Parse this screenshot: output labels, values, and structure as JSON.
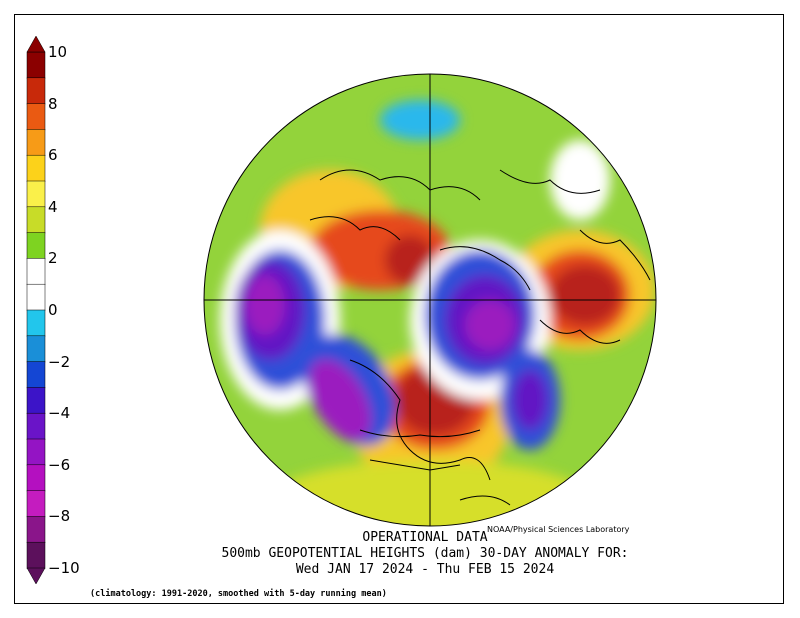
{
  "colorbar": {
    "labels": [
      "10",
      "8",
      "6",
      "4",
      "2",
      "0",
      "−2",
      "−4",
      "−6",
      "−8",
      "−10"
    ],
    "colors": [
      "#8b0000",
      "#c8290a",
      "#ea5a12",
      "#f79b17",
      "#fcd21a",
      "#faf04a",
      "#c8dc28",
      "#7ed321",
      "#ffffff",
      "#ffffff",
      "#22c6ec",
      "#1a8fd8",
      "#1446d4",
      "#3c14c8",
      "#6a14c8",
      "#9414c4",
      "#b410c0",
      "#c41cbf",
      "#8a158a",
      "#5c105c"
    ]
  },
  "map": {
    "credit": "NOAA/Physical Sciences Laboratory",
    "colors": {
      "ocean_base": "#93d33b",
      "strong_pos": "#b8221a",
      "pos": "#e6491b",
      "mod_pos": "#f2821a",
      "weak_pos": "#f8c62a",
      "mild_pos": "#d6df2c",
      "neutral": "#ffffff",
      "weak_neg": "#2bb8ec",
      "neg": "#2f4fd8",
      "strong_neg": "#6216c4",
      "extreme_neg": "#9b1dbf"
    }
  },
  "title": {
    "line1": "OPERATIONAL DATA",
    "line2": "500mb GEOPOTENTIAL HEIGHTS (dam)    30-DAY ANOMALY FOR:",
    "line3": "Wed JAN 17 2024 - Thu FEB 15 2024"
  },
  "footnote": "(climatology: 1991-2020, smoothed with 5-day running mean)"
}
